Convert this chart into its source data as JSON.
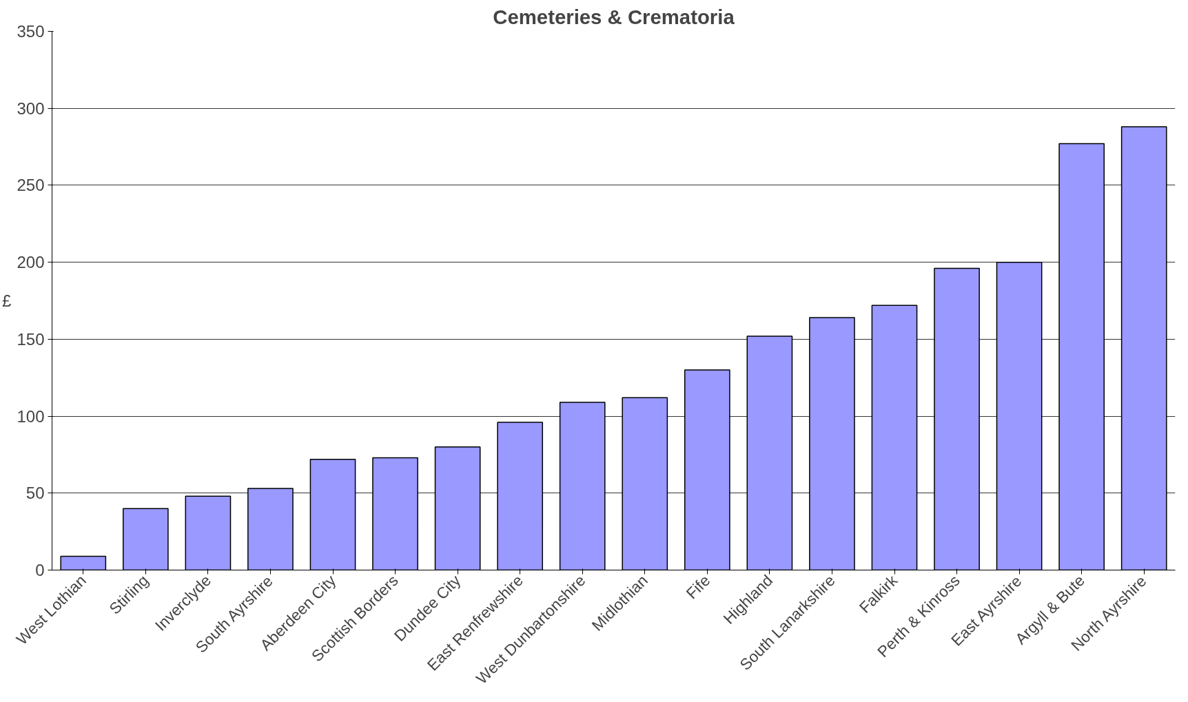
{
  "chart_data": {
    "type": "bar",
    "title": "Cemeteries & Crematoria",
    "ylabel": "£",
    "categories": [
      "West Lothian",
      "Stirling",
      "Inverclyde",
      "South Ayrshire",
      "Aberdeen City",
      "Scottish Borders",
      "Dundee City",
      "East Renfrewshire",
      "West Dunbartonshire",
      "Midlothian",
      "Fife",
      "Highland",
      "South Lanarkshire",
      "Falkirk",
      "Perth & Kinross",
      "East Ayrshire",
      "Argyll & Bute",
      "North Ayrshire"
    ],
    "values": [
      9,
      40,
      48,
      53,
      72,
      73,
      80,
      96,
      109,
      112,
      130,
      152,
      164,
      172,
      196,
      200,
      277,
      288
    ],
    "color": "#9999ff",
    "ylim": [
      0,
      350
    ],
    "yticks": [
      0,
      50,
      100,
      150,
      200,
      250,
      300,
      350
    ],
    "grid": "y"
  }
}
